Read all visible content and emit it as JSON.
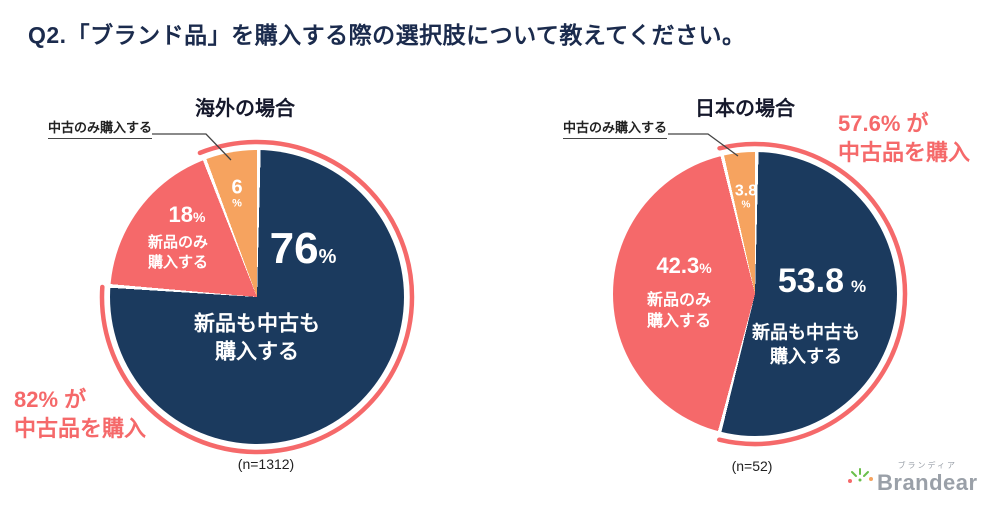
{
  "page": {
    "title": "Q2.「ブランド品」を購入する際の選択肢について教えてください。"
  },
  "colors": {
    "navy": "#1b3a5e",
    "salmon": "#f5696a",
    "orange": "#f6a35f",
    "title_navy": "#1b2b4d"
  },
  "chart_data": [
    {
      "type": "pie",
      "title": "海外の場合",
      "sample_label": "(n=1312)",
      "arc_percent": 82,
      "annotation": "82% が\n中古品を購入",
      "callout": "中古のみ購入する",
      "slices": [
        {
          "label": "新品も中古も購入する",
          "label_wrapped": "新品も中古も\n購入する",
          "value": 76,
          "display": "76",
          "unit": "%",
          "color": "#1b3a5e"
        },
        {
          "label": "新品のみ購入する",
          "label_wrapped": "新品のみ\n購入する",
          "value": 18,
          "display": "18",
          "unit": "%",
          "color": "#f5696a"
        },
        {
          "label": "中古のみ購入する",
          "label_wrapped": "中古のみ購入する",
          "value": 6,
          "display": "6",
          "unit": "%",
          "color": "#f6a35f"
        }
      ]
    },
    {
      "type": "pie",
      "title": "日本の場合",
      "sample_label": "(n=52)",
      "arc_percent": 57.6,
      "annotation": "57.6% が\n中古品を購入",
      "callout": "中古のみ購入する",
      "slices": [
        {
          "label": "新品も中古も購入する",
          "label_wrapped": "新品も中古も\n購入する",
          "value": 53.8,
          "display": "53.8",
          "unit": "%",
          "color": "#1b3a5e"
        },
        {
          "label": "新品のみ購入する",
          "label_wrapped": "新品のみ\n購入する",
          "value": 42.3,
          "display": "42.3",
          "unit": "%",
          "color": "#f5696a"
        },
        {
          "label": "中古のみ購入する",
          "label_wrapped": "中古のみ購入する",
          "value": 3.8,
          "display": "3.8",
          "unit": "%",
          "color": "#f6a35f"
        }
      ]
    }
  ],
  "logo": {
    "brand": "Brandear",
    "kana": "ブランディア"
  }
}
